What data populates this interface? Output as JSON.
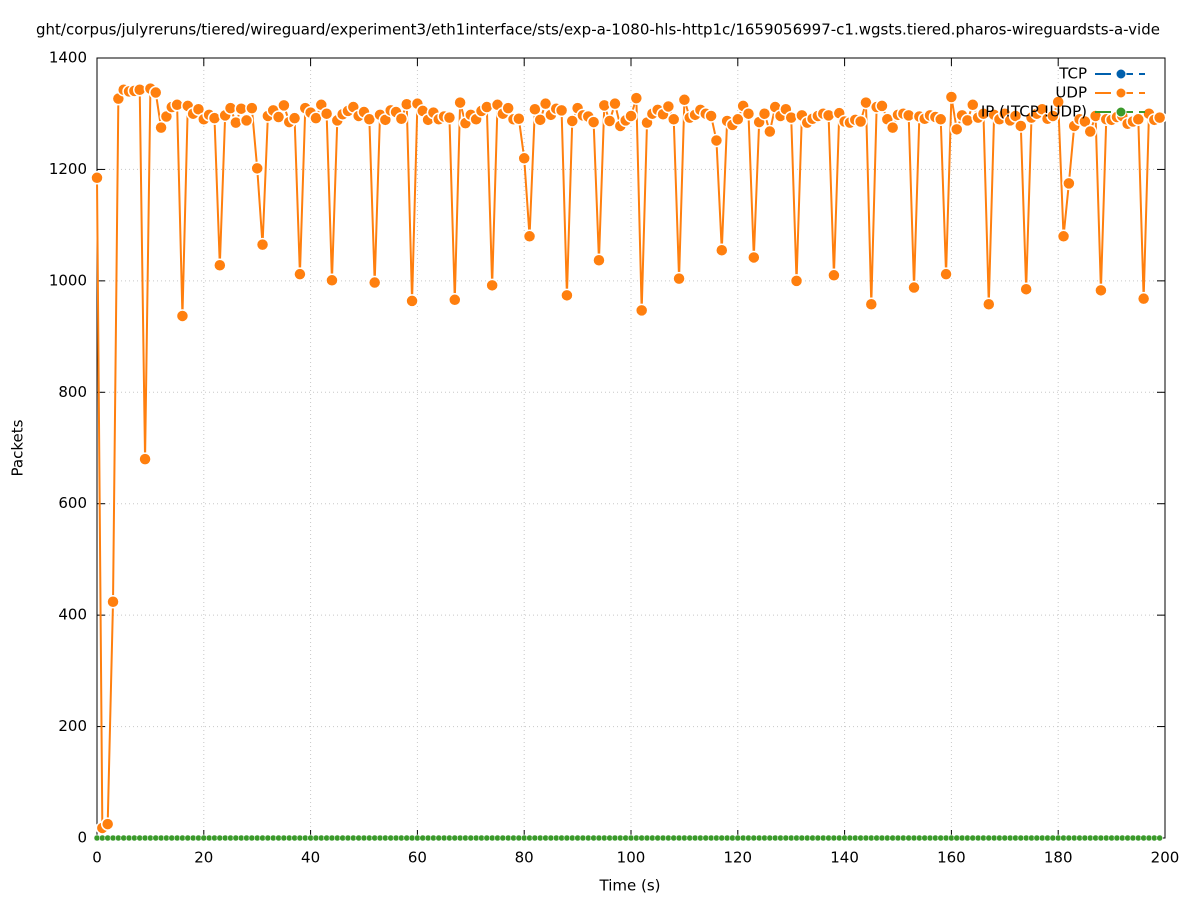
{
  "chart_data": {
    "type": "line",
    "title": "ght/corpus/julyreruns/tiered/wireguard/experiment3/eth1interface/sts/exp-a-1080-hls-http1c/1659056997-c1.wgsts.tiered.pharos-wireguardsts-a-vide",
    "xlabel": "Time (s)",
    "ylabel": "Packets",
    "xlim": [
      0,
      200
    ],
    "xticks": [
      0,
      20,
      40,
      60,
      80,
      100,
      120,
      140,
      160,
      180,
      200
    ],
    "ylim": [
      0,
      1400
    ],
    "yticks": [
      0,
      200,
      400,
      600,
      800,
      1000,
      1200,
      1400
    ],
    "grid": true,
    "legend": "top-right",
    "x": [
      0,
      1,
      2,
      3,
      4,
      5,
      6,
      7,
      8,
      9,
      10,
      11,
      12,
      13,
      14,
      15,
      16,
      17,
      18,
      19,
      20,
      21,
      22,
      23,
      24,
      25,
      26,
      27,
      28,
      29,
      30,
      31,
      32,
      33,
      34,
      35,
      36,
      37,
      38,
      39,
      40,
      41,
      42,
      43,
      44,
      45,
      46,
      47,
      48,
      49,
      50,
      51,
      52,
      53,
      54,
      55,
      56,
      57,
      58,
      59,
      60,
      61,
      62,
      63,
      64,
      65,
      66,
      67,
      68,
      69,
      70,
      71,
      72,
      73,
      74,
      75,
      76,
      77,
      78,
      79,
      80,
      81,
      82,
      83,
      84,
      85,
      86,
      87,
      88,
      89,
      90,
      91,
      92,
      93,
      94,
      95,
      96,
      97,
      98,
      99,
      100,
      101,
      102,
      103,
      104,
      105,
      106,
      107,
      108,
      109,
      110,
      111,
      112,
      113,
      114,
      115,
      116,
      117,
      118,
      119,
      120,
      121,
      122,
      123,
      124,
      125,
      126,
      127,
      128,
      129,
      130,
      131,
      132,
      133,
      134,
      135,
      136,
      137,
      138,
      139,
      140,
      141,
      142,
      143,
      144,
      145,
      146,
      147,
      148,
      149,
      150,
      151,
      152,
      153,
      154,
      155,
      156,
      157,
      158,
      159,
      160,
      161,
      162,
      163,
      164,
      165,
      166,
      167,
      168,
      169,
      170,
      171,
      172,
      173,
      174,
      175,
      176,
      177,
      178,
      179,
      180,
      181,
      182,
      183,
      184,
      185,
      186,
      187,
      188,
      189,
      190,
      191,
      192,
      193,
      194,
      195,
      196,
      197,
      198,
      199
    ],
    "series": [
      {
        "name": "TCP",
        "color": "#0060ad",
        "values": [
          0,
          0,
          0,
          0,
          0,
          0,
          0,
          0,
          0,
          0,
          0,
          0,
          0,
          0,
          0,
          0,
          0,
          0,
          0,
          0,
          0,
          0,
          0,
          0,
          0,
          0,
          0,
          0,
          0,
          0,
          0,
          0,
          0,
          0,
          0,
          0,
          0,
          0,
          0,
          0,
          0,
          0,
          0,
          0,
          0,
          0,
          0,
          0,
          0,
          0,
          0,
          0,
          0,
          0,
          0,
          0,
          0,
          0,
          0,
          0,
          0,
          0,
          0,
          0,
          0,
          0,
          0,
          0,
          0,
          0,
          0,
          0,
          0,
          0,
          0,
          0,
          0,
          0,
          0,
          0,
          0,
          0,
          0,
          0,
          0,
          0,
          0,
          0,
          0,
          0,
          0,
          0,
          0,
          0,
          0,
          0,
          0,
          0,
          0,
          0,
          0,
          0,
          0,
          0,
          0,
          0,
          0,
          0,
          0,
          0,
          0,
          0,
          0,
          0,
          0,
          0,
          0,
          0,
          0,
          0,
          0,
          0,
          0,
          0,
          0,
          0,
          0,
          0,
          0,
          0,
          0,
          0,
          0,
          0,
          0,
          0,
          0,
          0,
          0,
          0,
          0,
          0,
          0,
          0,
          0,
          0,
          0,
          0,
          0,
          0,
          0,
          0,
          0,
          0,
          0,
          0,
          0,
          0,
          0,
          0,
          0,
          0,
          0,
          0,
          0,
          0,
          0,
          0,
          0,
          0,
          0,
          0,
          0,
          0,
          0,
          0,
          0,
          0,
          0,
          0,
          0,
          0,
          0,
          0,
          0,
          0,
          0,
          0,
          0,
          0,
          0,
          0,
          0,
          0,
          0,
          0,
          0,
          0,
          0,
          0
        ]
      },
      {
        "name": "UDP",
        "color": "#ff7f0e",
        "values": [
          1185,
          18,
          25,
          424,
          1327,
          1343,
          1340,
          1341,
          1343,
          680,
          1345,
          1338,
          1275,
          1295,
          1312,
          1316,
          937,
          1314,
          1300,
          1308,
          1290,
          1298,
          1292,
          1028,
          1297,
          1310,
          1284,
          1309,
          1288,
          1310,
          1202,
          1065,
          1296,
          1306,
          1294,
          1315,
          1285,
          1292,
          1012,
          1310,
          1302,
          1292,
          1316,
          1300,
          1001,
          1288,
          1299,
          1305,
          1312,
          1296,
          1303,
          1290,
          997,
          1298,
          1289,
          1306,
          1303,
          1291,
          1317,
          964,
          1318,
          1305,
          1289,
          1302,
          1290,
          1295,
          1293,
          966,
          1320,
          1283,
          1298,
          1290,
          1305,
          1312,
          992,
          1316,
          1300,
          1310,
          1290,
          1291,
          1220,
          1080,
          1308,
          1289,
          1318,
          1298,
          1309,
          1306,
          974,
          1287,
          1310,
          1297,
          1295,
          1285,
          1037,
          1315,
          1287,
          1318,
          1278,
          1288,
          1296,
          1328,
          947,
          1284,
          1300,
          1307,
          1299,
          1313,
          1290,
          1004,
          1325,
          1293,
          1298,
          1307,
          1300,
          1296,
          1252,
          1055,
          1287,
          1280,
          1290,
          1314,
          1300,
          1042,
          1285,
          1300,
          1268,
          1312,
          1296,
          1308,
          1293,
          1000,
          1297,
          1284,
          1291,
          1296,
          1300,
          1297,
          1010,
          1301,
          1286,
          1284,
          1289,
          1286,
          1320,
          958,
          1312,
          1314,
          1290,
          1275,
          1298,
          1300,
          1297,
          988,
          1295,
          1291,
          1297,
          1294,
          1290,
          1012,
          1330,
          1272,
          1297,
          1288,
          1316,
          1293,
          1300,
          958,
          1298,
          1290,
          1300,
          1288,
          1296,
          1278,
          985,
          1293,
          1300,
          1308,
          1291,
          1296,
          1321,
          1080,
          1175,
          1278,
          1290,
          1286,
          1268,
          1296,
          983,
          1290,
          1289,
          1294,
          1296,
          1282,
          1286,
          1290,
          968,
          1300,
          1289,
          1293
        ]
      },
      {
        "name": "IP (!TCP !UDP)",
        "color": "#3a9a2a",
        "values": [
          0,
          0,
          0,
          0,
          0,
          0,
          0,
          0,
          0,
          0,
          0,
          0,
          0,
          0,
          0,
          0,
          0,
          0,
          0,
          0,
          0,
          0,
          0,
          0,
          0,
          0,
          0,
          0,
          0,
          0,
          0,
          0,
          0,
          0,
          0,
          0,
          0,
          0,
          0,
          0,
          0,
          0,
          0,
          0,
          0,
          0,
          0,
          0,
          0,
          0,
          0,
          0,
          0,
          0,
          0,
          0,
          0,
          0,
          0,
          0,
          0,
          0,
          0,
          0,
          0,
          0,
          0,
          0,
          0,
          0,
          0,
          0,
          0,
          0,
          0,
          0,
          0,
          0,
          0,
          0,
          0,
          0,
          0,
          0,
          0,
          0,
          0,
          0,
          0,
          0,
          0,
          0,
          0,
          0,
          0,
          0,
          0,
          0,
          0,
          0,
          0,
          0,
          0,
          0,
          0,
          0,
          0,
          0,
          0,
          0,
          0,
          0,
          0,
          0,
          0,
          0,
          0,
          0,
          0,
          0,
          0,
          0,
          0,
          0,
          0,
          0,
          0,
          0,
          0,
          0,
          0,
          0,
          0,
          0,
          0,
          0,
          0,
          0,
          0,
          0,
          0,
          0,
          0,
          0,
          0,
          0,
          0,
          0,
          0,
          0,
          0,
          0,
          0,
          0,
          0,
          0,
          0,
          0,
          0,
          0,
          0,
          0,
          0,
          0,
          0,
          0,
          0,
          0,
          0,
          0,
          0,
          0,
          0,
          0,
          0,
          0,
          0,
          0,
          0,
          0,
          0,
          0,
          0,
          0,
          0,
          0,
          0,
          0,
          0,
          0,
          0,
          0,
          0,
          0,
          0,
          0,
          0,
          0,
          0,
          0
        ]
      }
    ]
  }
}
